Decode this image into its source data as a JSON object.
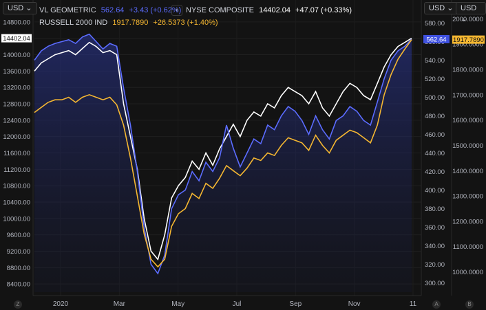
{
  "legend": {
    "vl": {
      "name": "VL GEOMETRIC",
      "value": "562.64",
      "change": "+3.43 (+0.62%)",
      "color": "#5b6cff"
    },
    "nyse": {
      "name": "NYSE COMPOSITE",
      "value": "14402.04",
      "change": "+47.07 (+0.33%)",
      "color": "#ffffff"
    },
    "russell": {
      "name": "RUSSELL 2000 IND",
      "value": "1917.7890",
      "change": "+26.5373 (+1.40%)",
      "color": "#f5b731"
    }
  },
  "currency_label": "USD",
  "nav_icon": "chevron-left-icon",
  "corners": {
    "left": "Z",
    "mid": "A",
    "right": "B"
  },
  "chart_data": {
    "type": "line",
    "x_ticks": [
      "2020",
      "Mar",
      "May",
      "Jul",
      "Sep",
      "Nov",
      "11"
    ],
    "axes": {
      "left": {
        "ticks": [
          "14800.00",
          "14400.00",
          "14000.00",
          "13600.00",
          "13200.00",
          "12800.00",
          "12400.00",
          "12000.00",
          "11600.00",
          "11200.00",
          "10800.00",
          "10400.00",
          "10000.00",
          "9600.00",
          "9200.00",
          "8800.00",
          "8400.00"
        ],
        "range": [
          8200,
          15000
        ]
      },
      "mid": {
        "ticks": [
          "580.00",
          "560.00",
          "540.00",
          "520.00",
          "500.00",
          "480.00",
          "460.00",
          "440.00",
          "420.00",
          "400.00",
          "380.00",
          "360.00",
          "340.00",
          "320.00",
          "300.00"
        ],
        "range": [
          290,
          590
        ]
      },
      "right": {
        "ticks": [
          "2000.0000",
          "1900.0000",
          "1800.0000",
          "1700.0000",
          "1600.0000",
          "1500.0000",
          "1400.0000",
          "1300.0000",
          "1200.0000",
          "1100.0000",
          "1000.0000"
        ],
        "range": [
          920,
          2020
        ]
      }
    },
    "last_labels": {
      "nyse": "14402.04",
      "vl": "562.64",
      "russell": "1917.7890"
    },
    "series": [
      {
        "name": "NYSE COMPOSITE",
        "axis": "left",
        "color": "#ffffff",
        "values": [
          13600,
          13800,
          13900,
          14000,
          14050,
          14100,
          14000,
          14150,
          14300,
          14200,
          14050,
          14100,
          14000,
          12800,
          12000,
          11200,
          10000,
          9200,
          9000,
          9600,
          10500,
          10800,
          11000,
          11400,
          11200,
          11600,
          11300,
          11700,
          12000,
          12300,
          12000,
          12400,
          12600,
          12500,
          12800,
          12700,
          13000,
          13200,
          13100,
          13000,
          12800,
          13100,
          12700,
          12500,
          12800,
          13100,
          13300,
          13200,
          13000,
          12900,
          13300,
          13700,
          14000,
          14200,
          14300,
          14402.04
        ]
      },
      {
        "name": "VL GEOMETRIC",
        "axis": "mid",
        "color": "#5b6cff",
        "values": [
          540,
          550,
          555,
          558,
          560,
          562,
          558,
          565,
          568,
          560,
          552,
          558,
          555,
          510,
          470,
          420,
          360,
          320,
          310,
          330,
          380,
          395,
          400,
          420,
          410,
          430,
          420,
          435,
          470,
          445,
          425,
          440,
          455,
          450,
          470,
          465,
          480,
          490,
          485,
          475,
          460,
          480,
          465,
          455,
          475,
          480,
          490,
          485,
          475,
          470,
          495,
          520,
          540,
          550,
          555,
          562.64
        ]
      },
      {
        "name": "RUSSELL 2000 IND",
        "axis": "right",
        "color": "#f5b731",
        "values": [
          1630,
          1650,
          1670,
          1680,
          1680,
          1690,
          1670,
          1690,
          1700,
          1690,
          1680,
          1690,
          1660,
          1580,
          1450,
          1300,
          1150,
          1050,
          1020,
          1050,
          1180,
          1230,
          1250,
          1310,
          1290,
          1350,
          1330,
          1370,
          1420,
          1400,
          1380,
          1410,
          1450,
          1440,
          1470,
          1460,
          1500,
          1530,
          1520,
          1510,
          1480,
          1540,
          1500,
          1470,
          1520,
          1540,
          1560,
          1550,
          1530,
          1510,
          1580,
          1700,
          1780,
          1840,
          1880,
          1917.789
        ]
      }
    ]
  }
}
